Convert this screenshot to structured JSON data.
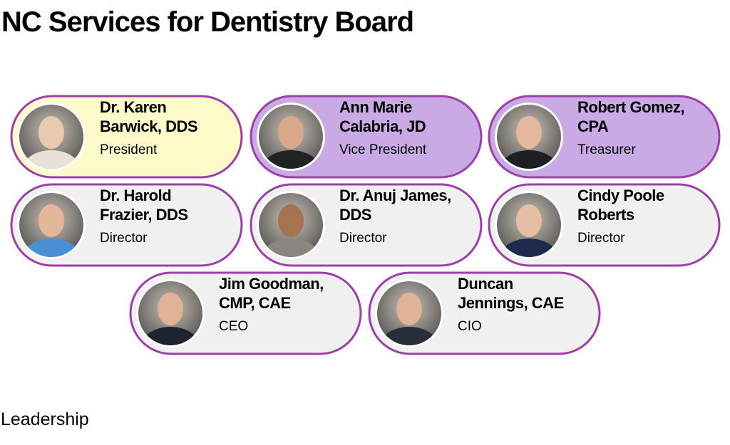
{
  "header": {
    "title": "NC Services for Dentistry Board"
  },
  "members": [
    {
      "name": [
        "Dr. Karen",
        "Barwick, DDS"
      ],
      "role": "President"
    },
    {
      "name": [
        "Ann Marie",
        "Calabria, JD"
      ],
      "role": "Vice President"
    },
    {
      "name": [
        "Robert Gomez,",
        "CPA"
      ],
      "role": "Treasurer"
    },
    {
      "name": [
        "Dr. Harold",
        "Frazier, DDS"
      ],
      "role": "Director"
    },
    {
      "name": [
        "Dr. Anuj James,",
        "DDS"
      ],
      "role": "Director"
    },
    {
      "name": [
        "Cindy Poole",
        "Roberts"
      ],
      "role": "Director"
    },
    {
      "name": [
        "Jim Goodman,",
        "CMP, CAE"
      ],
      "role": "CEO"
    },
    {
      "name": [
        "Duncan",
        "Jennings, CAE"
      ],
      "role": "CIO"
    }
  ],
  "footer": {
    "label": "Leadership"
  }
}
